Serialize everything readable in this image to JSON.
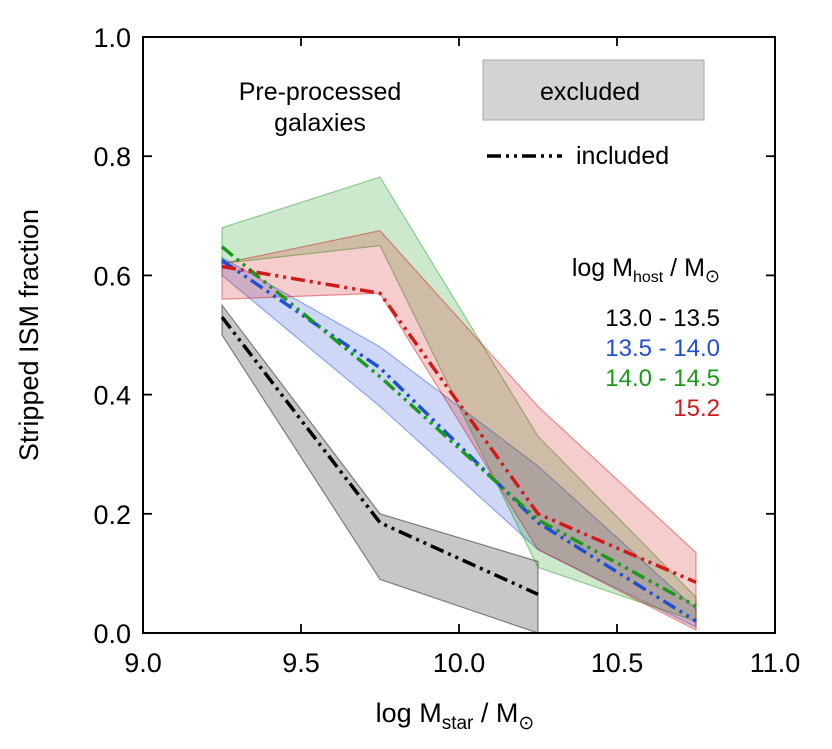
{
  "chart_data": {
    "type": "line",
    "title": "",
    "xlabel": {
      "main": "log M",
      "sub": "star",
      "rest": " / M",
      "sun": "⊙"
    },
    "ylabel": "Stripped ISM fraction",
    "xlim": [
      9.0,
      11.0
    ],
    "ylim": [
      0.0,
      1.0
    ],
    "xticks": [
      9.0,
      9.5,
      10.0,
      10.5,
      11.0
    ],
    "xtick_labels": [
      "9.0",
      "9.5",
      "10.0",
      "10.5",
      "11.0"
    ],
    "yticks": [
      0.0,
      0.2,
      0.4,
      0.6,
      0.8,
      1.0
    ],
    "ytick_labels": [
      "0.0",
      "0.2",
      "0.4",
      "0.6",
      "0.8",
      "1.0"
    ],
    "annotation": [
      "Pre-processed",
      "galaxies"
    ],
    "legend": {
      "excluded_label": "excluded",
      "included_label": "included"
    },
    "host_legend": {
      "title_main": "log M",
      "title_sub": "host",
      "title_rest": " / M",
      "title_sun": "⊙"
    },
    "series": [
      {
        "name": "13.0 - 13.5",
        "color": "#000000",
        "x": [
          9.25,
          9.75,
          10.25
        ],
        "included": [
          0.53,
          0.185,
          0.065
        ],
        "band_upper": [
          0.55,
          0.2,
          0.12
        ],
        "band_lower": [
          0.5,
          0.09,
          0.0
        ]
      },
      {
        "name": "13.5 - 14.0",
        "color": "#1f4fd6",
        "x": [
          9.25,
          9.75,
          10.25,
          10.75
        ],
        "included": [
          0.625,
          0.445,
          0.185,
          0.02
        ],
        "band_upper": [
          0.63,
          0.48,
          0.28,
          0.04
        ],
        "band_lower": [
          0.6,
          0.38,
          0.14,
          0.01
        ]
      },
      {
        "name": "14.0 - 14.5",
        "color": "#1a9a1a",
        "x": [
          9.25,
          9.75,
          10.25,
          10.75
        ],
        "included": [
          0.648,
          0.43,
          0.19,
          0.045
        ],
        "band_upper": [
          0.68,
          0.765,
          0.33,
          0.06
        ],
        "band_lower": [
          0.62,
          0.65,
          0.11,
          0.02
        ]
      },
      {
        "name": "15.2",
        "color": "#d11a1a",
        "x": [
          9.25,
          9.75,
          10.25,
          10.75
        ],
        "included": [
          0.615,
          0.57,
          0.2,
          0.085
        ],
        "band_upper": [
          0.62,
          0.675,
          0.38,
          0.135
        ],
        "band_lower": [
          0.56,
          0.57,
          0.14,
          0.005
        ]
      }
    ]
  }
}
